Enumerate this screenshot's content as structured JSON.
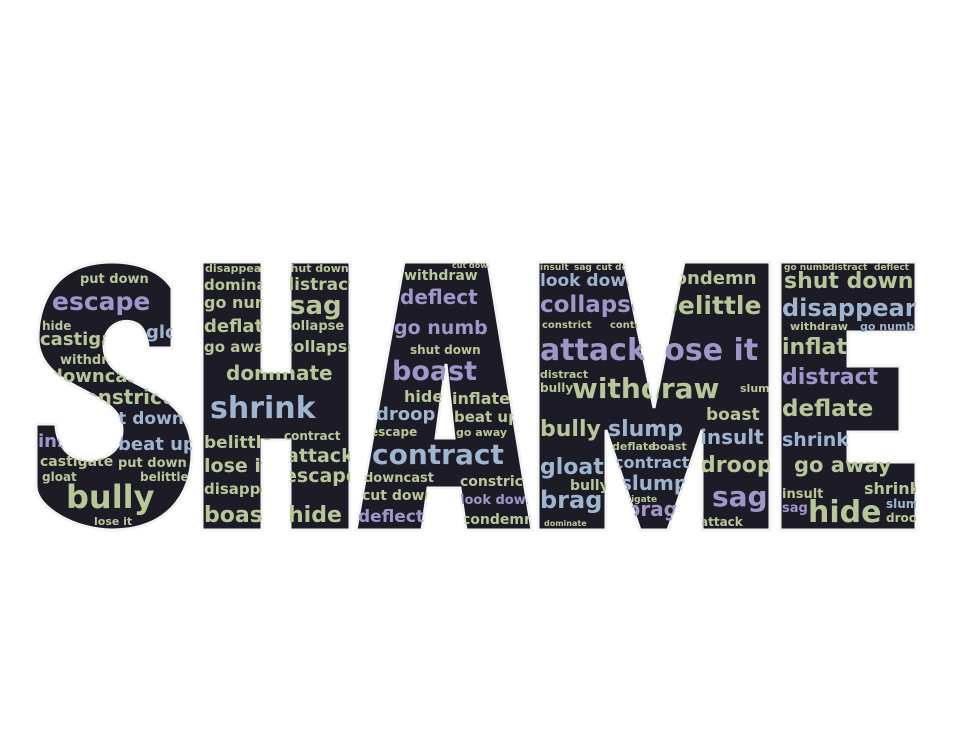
{
  "title_word": "SHAME",
  "palette": {
    "background": "#ffffff",
    "letter_fill": "#1c1b26",
    "letter_outline": "#f4f4f4",
    "word_green": "#b8c79a",
    "word_purple": "#a096c8",
    "word_blue": "#9fb4cf"
  },
  "letters": {
    "S": {
      "words": [
        {
          "t": "put down",
          "s": 13,
          "c": "g"
        },
        {
          "t": "escape",
          "s": 25,
          "c": "p"
        },
        {
          "t": "hide",
          "s": 12,
          "c": "g"
        },
        {
          "t": "castigate",
          "s": 18,
          "c": "g"
        },
        {
          "t": "gloat",
          "s": 18,
          "c": "b"
        },
        {
          "t": "withdraw",
          "s": 13,
          "c": "g"
        },
        {
          "t": "downcast",
          "s": 18,
          "c": "g"
        },
        {
          "t": "constrict",
          "s": 20,
          "c": "g"
        },
        {
          "t": "cut down",
          "s": 17,
          "c": "b"
        },
        {
          "t": "insult",
          "s": 18,
          "c": "p"
        },
        {
          "t": "beat up",
          "s": 18,
          "c": "b"
        },
        {
          "t": "castigate",
          "s": 14,
          "c": "g"
        },
        {
          "t": "put down",
          "s": 13,
          "c": "g"
        },
        {
          "t": "gloat",
          "s": 12,
          "c": "g"
        },
        {
          "t": "belittle",
          "s": 12,
          "c": "g"
        },
        {
          "t": "bully",
          "s": 32,
          "c": "g"
        },
        {
          "t": "lose it",
          "s": 11,
          "c": "g"
        }
      ]
    },
    "H": {
      "words": [
        {
          "t": "disappear",
          "s": 11,
          "c": "g"
        },
        {
          "t": "shut down",
          "s": 11,
          "c": "g"
        },
        {
          "t": "dominate",
          "s": 15,
          "c": "g"
        },
        {
          "t": "distract",
          "s": 17,
          "c": "g"
        },
        {
          "t": "go numb",
          "s": 16,
          "c": "g"
        },
        {
          "t": "sag",
          "s": 26,
          "c": "g"
        },
        {
          "t": "deflate",
          "s": 18,
          "c": "g"
        },
        {
          "t": "collapse",
          "s": 13,
          "c": "g"
        },
        {
          "t": "go away",
          "s": 15,
          "c": "g"
        },
        {
          "t": "collapse",
          "s": 16,
          "c": "g"
        },
        {
          "t": "dominate",
          "s": 20,
          "c": "g"
        },
        {
          "t": "shrink",
          "s": 30,
          "c": "b"
        },
        {
          "t": "contract",
          "s": 12,
          "c": "g"
        },
        {
          "t": "belittle",
          "s": 17,
          "c": "g"
        },
        {
          "t": "attack",
          "s": 19,
          "c": "g"
        },
        {
          "t": "lose it",
          "s": 19,
          "c": "g"
        },
        {
          "t": "escape",
          "s": 19,
          "c": "g"
        },
        {
          "t": "disappear",
          "s": 15,
          "c": "g"
        },
        {
          "t": "boast",
          "s": 22,
          "c": "g"
        },
        {
          "t": "hide",
          "s": 22,
          "c": "g"
        }
      ]
    },
    "A": {
      "words": [
        {
          "t": "cut down",
          "s": 8,
          "c": "g"
        },
        {
          "t": "withdraw",
          "s": 14,
          "c": "g"
        },
        {
          "t": "deflect",
          "s": 20,
          "c": "p"
        },
        {
          "t": "go numb",
          "s": 19,
          "c": "p"
        },
        {
          "t": "shut down",
          "s": 12,
          "c": "g"
        },
        {
          "t": "boast",
          "s": 27,
          "c": "p"
        },
        {
          "t": "hide",
          "s": 16,
          "c": "g"
        },
        {
          "t": "inflate",
          "s": 16,
          "c": "g"
        },
        {
          "t": "droop",
          "s": 18,
          "c": "b"
        },
        {
          "t": "beat up",
          "s": 15,
          "c": "g"
        },
        {
          "t": "escape",
          "s": 12,
          "c": "g"
        },
        {
          "t": "go away",
          "s": 11,
          "c": "g"
        },
        {
          "t": "contract",
          "s": 28,
          "c": "b"
        },
        {
          "t": "downcast",
          "s": 13,
          "c": "g"
        },
        {
          "t": "constrict",
          "s": 14,
          "c": "g"
        },
        {
          "t": "cut down",
          "s": 14,
          "c": "g"
        },
        {
          "t": "look down",
          "s": 13,
          "c": "p"
        },
        {
          "t": "deflect",
          "s": 17,
          "c": "p"
        },
        {
          "t": "condemn",
          "s": 14,
          "c": "g"
        }
      ]
    },
    "M": {
      "words": [
        {
          "t": "insult",
          "s": 9,
          "c": "g"
        },
        {
          "t": "sag",
          "s": 9,
          "c": "g"
        },
        {
          "t": "cut down",
          "s": 9,
          "c": "g"
        },
        {
          "t": "look down",
          "s": 17,
          "c": "b"
        },
        {
          "t": "condemn",
          "s": 18,
          "c": "g"
        },
        {
          "t": "collapse",
          "s": 23,
          "c": "p"
        },
        {
          "t": "belittle",
          "s": 25,
          "c": "g"
        },
        {
          "t": "constrict",
          "s": 10,
          "c": "g"
        },
        {
          "t": "contract",
          "s": 10,
          "c": "g"
        },
        {
          "t": "attack",
          "s": 30,
          "c": "p"
        },
        {
          "t": "lose it",
          "s": 30,
          "c": "p"
        },
        {
          "t": "withdraw",
          "s": 28,
          "c": "g"
        },
        {
          "t": "distract",
          "s": 11,
          "c": "g"
        },
        {
          "t": "bully",
          "s": 12,
          "c": "g"
        },
        {
          "t": "slump",
          "s": 11,
          "c": "g"
        },
        {
          "t": "bully",
          "s": 22,
          "c": "g"
        },
        {
          "t": "slump",
          "s": 22,
          "c": "b"
        },
        {
          "t": "boast",
          "s": 17,
          "c": "g"
        },
        {
          "t": "insult",
          "s": 20,
          "c": "b"
        },
        {
          "t": "deflate",
          "s": 11,
          "c": "g"
        },
        {
          "t": "boast",
          "s": 11,
          "c": "g"
        },
        {
          "t": "contract",
          "s": 16,
          "c": "b"
        },
        {
          "t": "droop",
          "s": 22,
          "c": "g"
        },
        {
          "t": "gloat",
          "s": 22,
          "c": "b"
        },
        {
          "t": "slump",
          "s": 20,
          "c": "b"
        },
        {
          "t": "bully",
          "s": 14,
          "c": "g"
        },
        {
          "t": "sag",
          "s": 28,
          "c": "p"
        },
        {
          "t": "brag",
          "s": 24,
          "c": "b"
        },
        {
          "t": "brag",
          "s": 20,
          "c": "p"
        },
        {
          "t": "dominate",
          "s": 8,
          "c": "g"
        },
        {
          "t": "castigate",
          "s": 9,
          "c": "g"
        },
        {
          "t": "attack",
          "s": 12,
          "c": "g"
        }
      ]
    },
    "E": {
      "words": [
        {
          "t": "go numb",
          "s": 9,
          "c": "g"
        },
        {
          "t": "distract",
          "s": 9,
          "c": "g"
        },
        {
          "t": "deflect",
          "s": 9,
          "c": "g"
        },
        {
          "t": "shut down",
          "s": 22,
          "c": "g"
        },
        {
          "t": "disappear",
          "s": 24,
          "c": "b"
        },
        {
          "t": "withdraw",
          "s": 11,
          "c": "g"
        },
        {
          "t": "go numb",
          "s": 11,
          "c": "b"
        },
        {
          "t": "inflate",
          "s": 22,
          "c": "g"
        },
        {
          "t": "distract",
          "s": 22,
          "c": "p"
        },
        {
          "t": "deflate",
          "s": 23,
          "c": "g"
        },
        {
          "t": "shrink",
          "s": 19,
          "c": "b"
        },
        {
          "t": "go away",
          "s": 21,
          "c": "g"
        },
        {
          "t": "shrink",
          "s": 16,
          "c": "g"
        },
        {
          "t": "insult",
          "s": 13,
          "c": "g"
        },
        {
          "t": "sag",
          "s": 13,
          "c": "p"
        },
        {
          "t": "hide",
          "s": 30,
          "c": "g"
        },
        {
          "t": "slump",
          "s": 12,
          "c": "b"
        },
        {
          "t": "droop",
          "s": 12,
          "c": "g"
        }
      ]
    }
  }
}
